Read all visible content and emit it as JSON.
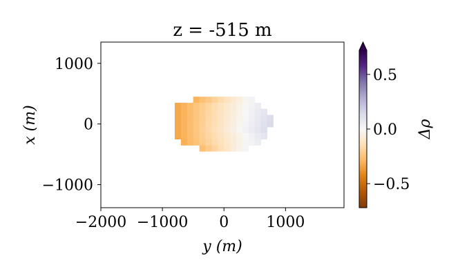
{
  "chart_data": {
    "type": "heatmap",
    "title": "z = -515 m",
    "xlabel": "y (m)",
    "ylabel": "x (m)",
    "colorbar_label": "Δρ",
    "xlim": [
      -2000,
      1950
    ],
    "ylim": [
      -1380,
      1350
    ],
    "xticks": [
      -2000,
      -1000,
      0,
      1000
    ],
    "xtick_labels": [
      "−2000",
      "−1000",
      "0",
      "1000"
    ],
    "yticks": [
      -1000,
      0,
      1000
    ],
    "ytick_labels": [
      "−1000",
      "0",
      "1000"
    ],
    "colorbar_range": [
      -0.72,
      0.72
    ],
    "colorbar_ticks": [
      -0.5,
      0.0,
      0.5
    ],
    "colorbar_tick_labels": [
      "−0.5",
      "0.0",
      "0.5"
    ],
    "colorbar_extend": "max",
    "colormap": "PuOr",
    "grid": false,
    "cell_size": 100,
    "rows": [
      {
        "x": 400,
        "y_start": -450,
        "y_end": 450,
        "v_left": -0.3,
        "v_right": 0.02
      },
      {
        "x": 300,
        "y_start": -750,
        "y_end": 500,
        "v_left": -0.33,
        "v_right": 0.05
      },
      {
        "x": 200,
        "y_start": -750,
        "y_end": 600,
        "v_left": -0.33,
        "v_right": 0.09
      },
      {
        "x": 100,
        "y_start": -750,
        "y_end": 700,
        "v_left": -0.33,
        "v_right": 0.13
      },
      {
        "x": 0,
        "y_start": -750,
        "y_end": 700,
        "v_left": -0.33,
        "v_right": 0.14
      },
      {
        "x": -100,
        "y_start": -750,
        "y_end": 600,
        "v_left": -0.33,
        "v_right": 0.12
      },
      {
        "x": -200,
        "y_start": -750,
        "y_end": 600,
        "v_left": -0.33,
        "v_right": 0.09
      },
      {
        "x": -300,
        "y_start": -650,
        "y_end": 500,
        "v_left": -0.31,
        "v_right": 0.05
      },
      {
        "x": -400,
        "y_start": -350,
        "y_end": 300,
        "v_left": -0.26,
        "v_right": 0.01
      }
    ]
  }
}
